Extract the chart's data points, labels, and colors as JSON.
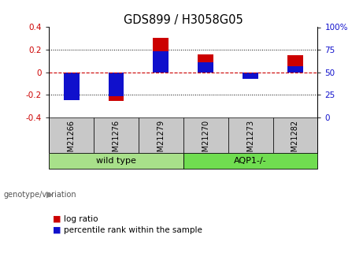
{
  "title": "GDS899 / H3058G05",
  "samples": [
    "GSM21266",
    "GSM21276",
    "GSM21279",
    "GSM21270",
    "GSM21273",
    "GSM21282"
  ],
  "log_ratios": [
    -0.13,
    -0.255,
    0.305,
    0.155,
    -0.055,
    0.15
  ],
  "percentile_ranks_raw": [
    19.0,
    23.0,
    73.0,
    61.0,
    43.0,
    57.0
  ],
  "groups": [
    {
      "label": "wild type",
      "indices": [
        0,
        1,
        2
      ],
      "color": "#a8e08a"
    },
    {
      "label": "AQP1-/-",
      "indices": [
        3,
        4,
        5
      ],
      "color": "#70dd50"
    }
  ],
  "ylim": [
    -0.4,
    0.4
  ],
  "y2lim": [
    0,
    100
  ],
  "yticks": [
    -0.4,
    -0.2,
    0,
    0.2,
    0.4
  ],
  "y2ticks": [
    0,
    25,
    50,
    75,
    100
  ],
  "bar_color_red": "#cc0000",
  "bar_color_blue": "#1010cc",
  "bar_width": 0.35,
  "zero_line_color": "#cc0000",
  "grid_color": "#000000",
  "bg_color": "#ffffff",
  "label_area_color": "#c8c8c8",
  "genotype_label": "genotype/variation",
  "legend_red": "log ratio",
  "legend_blue": "percentile rank within the sample",
  "title_fontsize": 10.5,
  "tick_fontsize": 7.5,
  "sample_fontsize": 7.0
}
